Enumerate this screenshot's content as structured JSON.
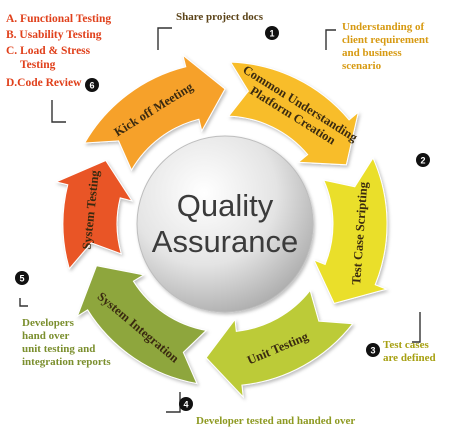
{
  "center": {
    "line1": "Quality",
    "line2": "Assurance"
  },
  "phases": [
    {
      "number": "1",
      "label_lines": [
        "Kick off Meeting"
      ],
      "color": "#f6a12a",
      "annotation_lines": [
        "Share project docs"
      ],
      "annotation_color": "#5b4318"
    },
    {
      "number": "2",
      "label_lines": [
        "Common Understanding",
        "Platform Creation"
      ],
      "color": "#f8bd2c",
      "annotation_lines": [
        "Understanding of",
        "client requirement",
        "and business",
        "scenario"
      ],
      "annotation_color": "#d79a12"
    },
    {
      "number": "3",
      "label_lines": [
        "Test Case Scripting"
      ],
      "color": "#eadf2a",
      "annotation_lines": [
        "Test cases",
        "are defined"
      ],
      "annotation_color": "#a7a012"
    },
    {
      "number": "4",
      "label_lines": [
        "Unit Testing"
      ],
      "color": "#bccb37",
      "annotation_lines": [
        "Developer tested and handed over"
      ],
      "annotation_color": "#8e9a22"
    },
    {
      "number": "5",
      "label_lines": [
        "System Integration"
      ],
      "color": "#8ea63d",
      "annotation_lines": [
        "Developers",
        "hand over",
        "unit testing and",
        "integration reports"
      ],
      "annotation_color": "#7b8f2e"
    },
    {
      "number": "6",
      "label_lines": [
        "System Testing"
      ],
      "color": "#e95425",
      "annotation_lines": [],
      "annotation_color": "#e0401b"
    }
  ],
  "test_types": [
    "A. Functional Testing",
    "B. Usability Testing",
    "C. Load & Stress",
    "Testing",
    "D.Code Review"
  ]
}
